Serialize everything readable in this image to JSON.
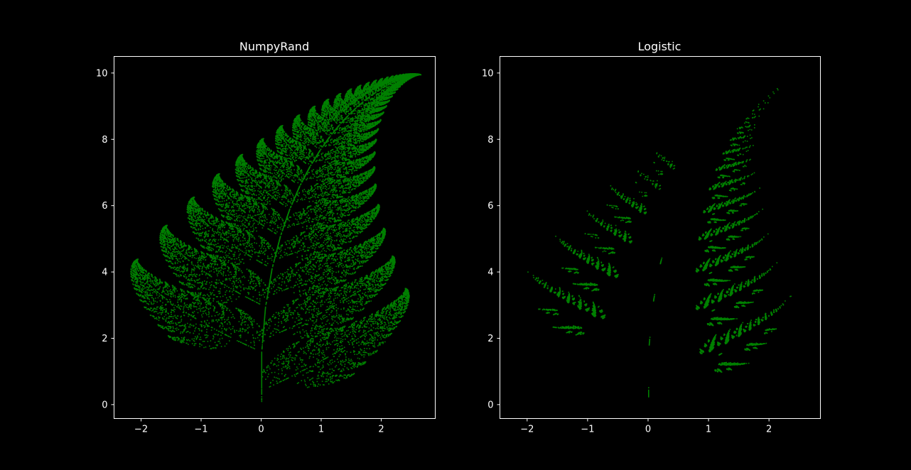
{
  "chart_data": [
    {
      "type": "scatter",
      "title": "NumpyRand",
      "xlabel": "",
      "ylabel": "",
      "xlim": [
        -2.45,
        2.9
      ],
      "ylim": [
        -0.42,
        10.5
      ],
      "xticks": [
        -2,
        -1,
        0,
        1,
        2
      ],
      "yticks": [
        0,
        2,
        4,
        6,
        8,
        10
      ],
      "xtick_labels": [
        "−2",
        "−1",
        "0",
        "1",
        "2"
      ],
      "ytick_labels": [
        "0",
        "2",
        "4",
        "6",
        "8",
        "10"
      ],
      "grid": false,
      "point_color": "#008000",
      "seed": 12345,
      "points": 24000,
      "generator": "barnsley-fern"
    },
    {
      "type": "scatter",
      "title": "Logistic",
      "xlabel": "",
      "ylabel": "",
      "xlim": [
        -2.45,
        2.85
      ],
      "ylim": [
        -0.42,
        10.5
      ],
      "xticks": [
        -2,
        -1,
        0,
        1,
        2
      ],
      "yticks": [
        0,
        2,
        4,
        6,
        8,
        10
      ],
      "xtick_labels": [
        "−2",
        "−1",
        "0",
        "1",
        "2"
      ],
      "ytick_labels": [
        "0",
        "2",
        "4",
        "6",
        "8",
        "10"
      ],
      "grid": false,
      "point_color": "#008000",
      "logistic_r": 3.99,
      "logistic_x0": 0.3127,
      "points": 24000,
      "generator": "barnsley-fern"
    }
  ],
  "colors": {
    "background": "#000000",
    "axes": "#ffffff"
  }
}
